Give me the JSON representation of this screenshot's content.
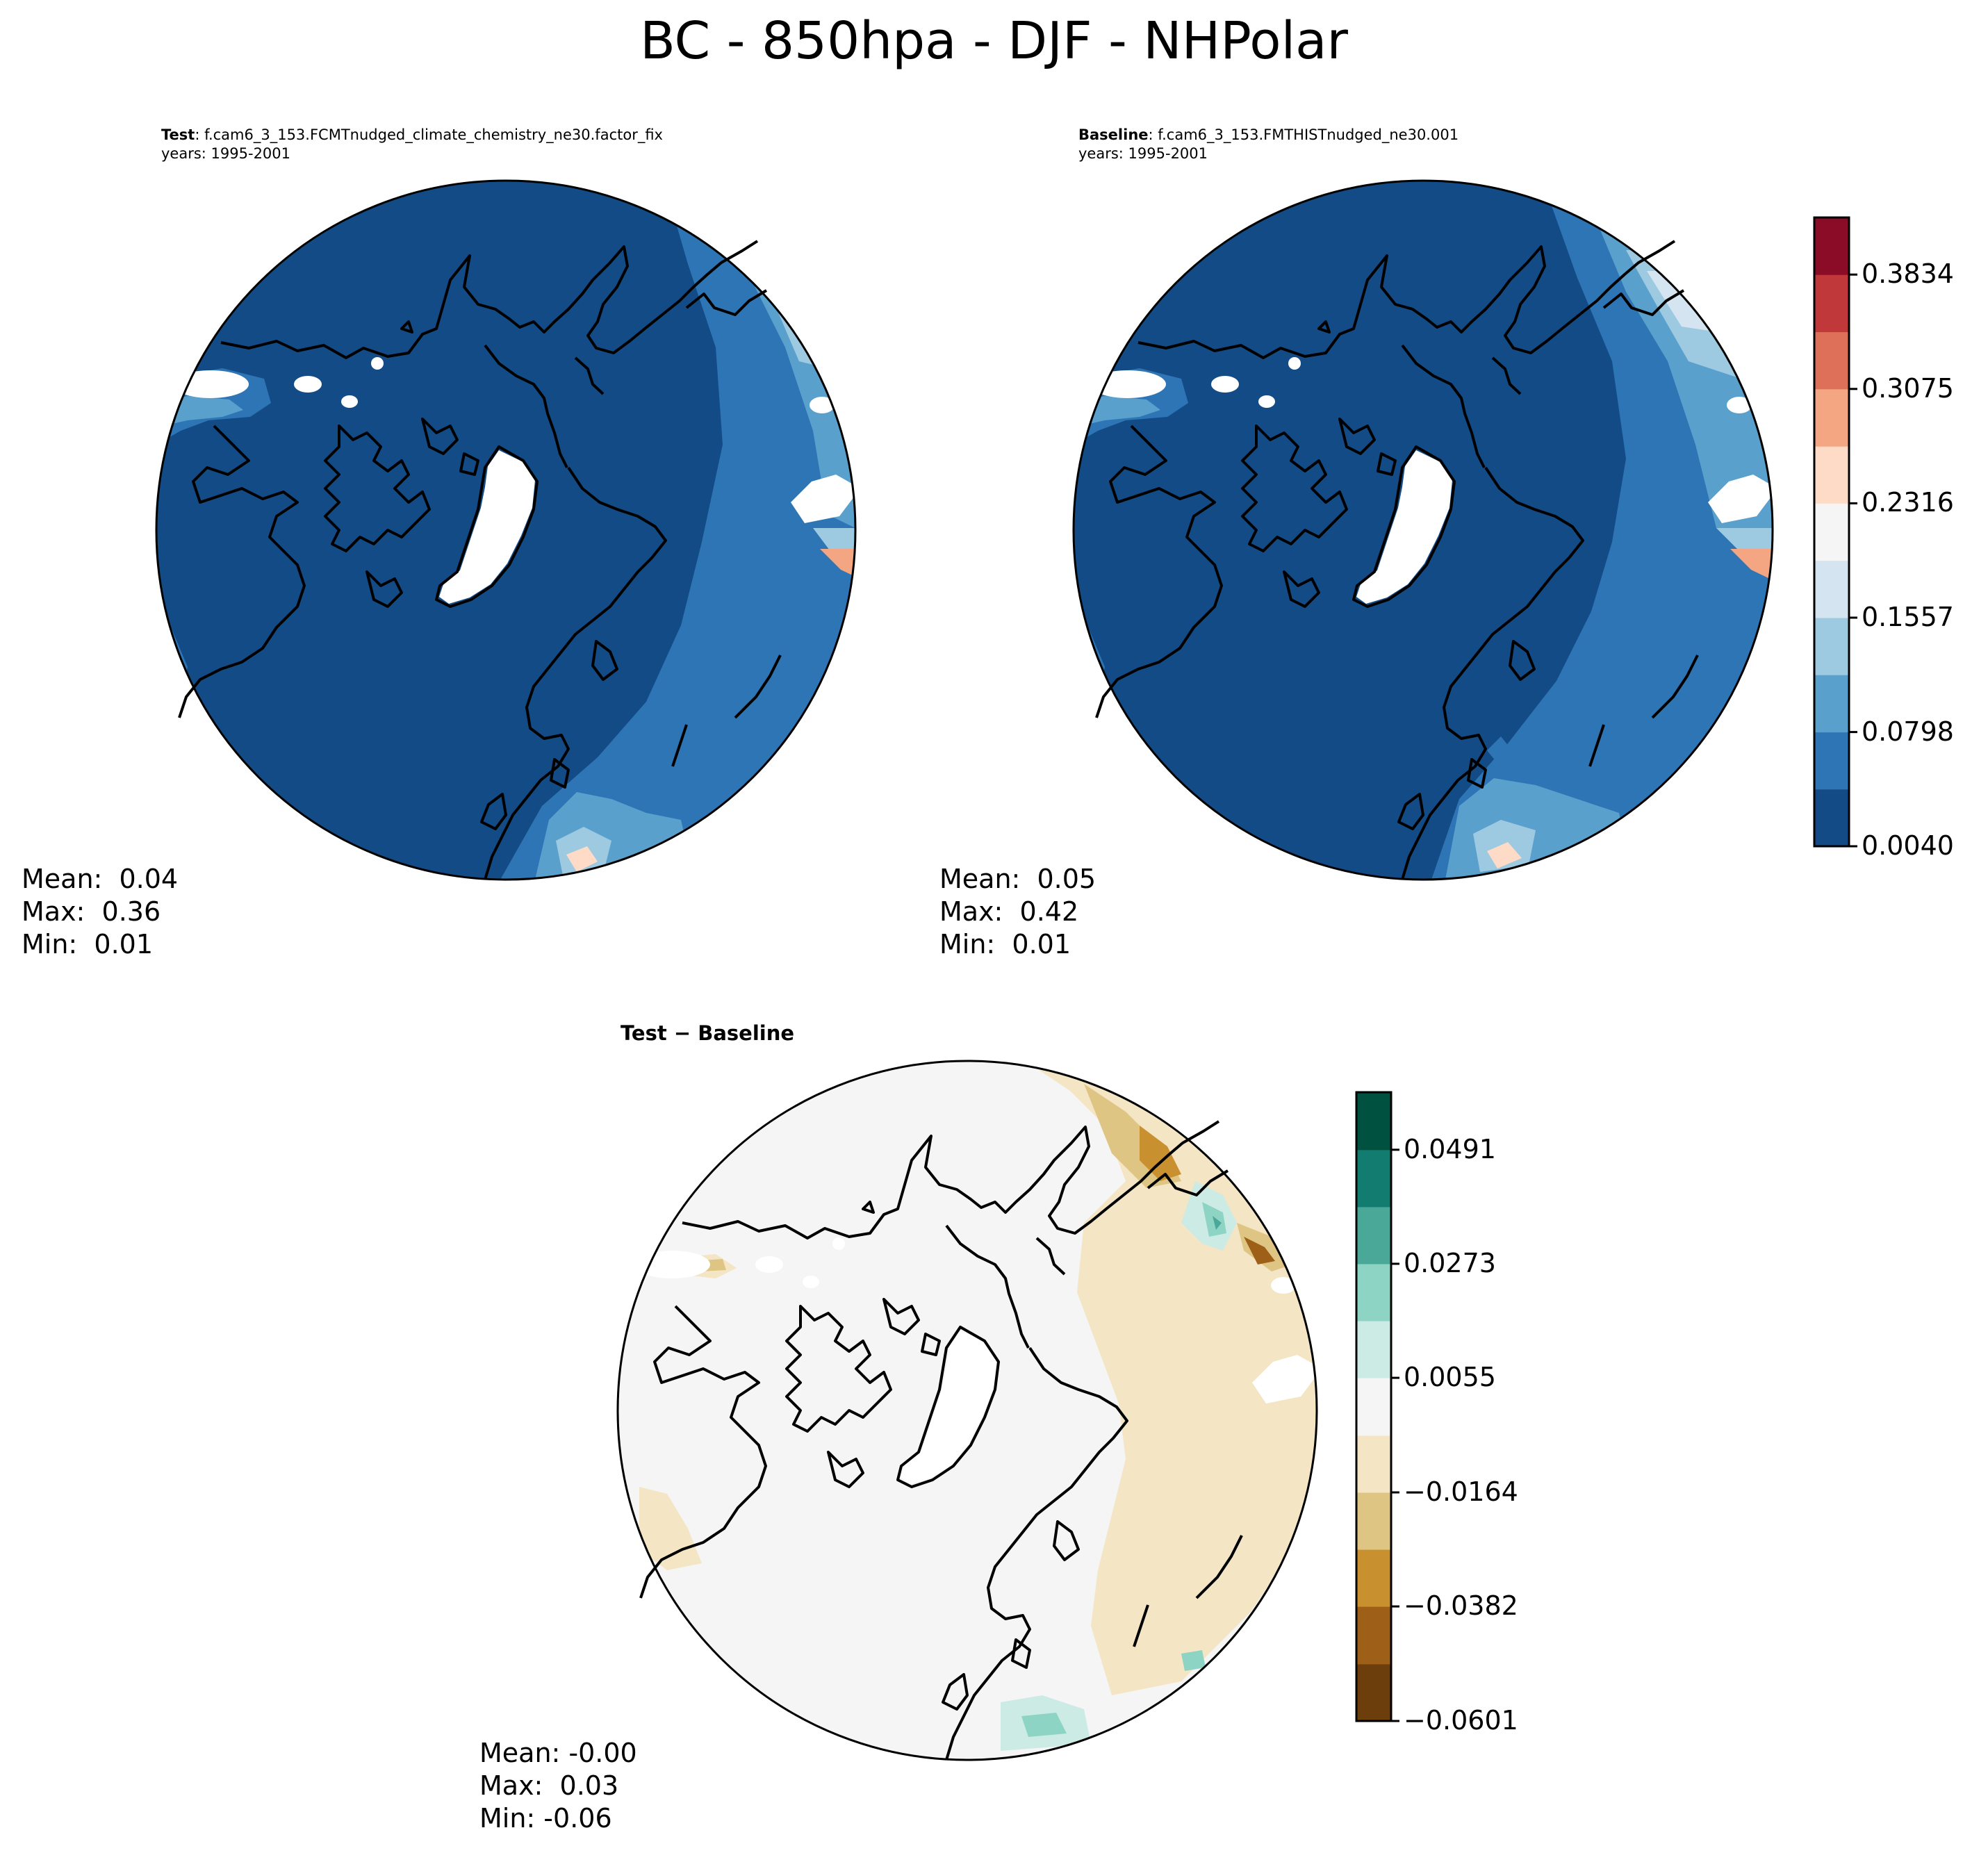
{
  "figure": {
    "title": "BC - 850hpa - DJF - NHPolar"
  },
  "panels": {
    "test": {
      "label": "Test",
      "case": ": f.cam6_3_153.FCMTnudged_climate_chemistry_ne30.factor_fix",
      "years": "years: 1995-2001",
      "stats": {
        "mean": "Mean:  0.04",
        "max": "Max:  0.36",
        "min": "Min:  0.01"
      }
    },
    "baseline": {
      "label": "Baseline",
      "case": ": f.cam6_3_153.FMTHISTnudged_ne30.001",
      "years": "years: 1995-2001",
      "stats": {
        "mean": "Mean:  0.05",
        "max": "Max:  0.42",
        "min": "Min:  0.01"
      }
    },
    "diff": {
      "title": "Test − Baseline",
      "stats": {
        "mean": "Mean: -0.00",
        "max": "Max:  0.03",
        "min": "Min: -0.06"
      }
    }
  },
  "colorbars": {
    "main": {
      "colors": [
        "#134b86",
        "#2e75b6",
        "#5aa0cd",
        "#9ecae1",
        "#d4e5f1",
        "#f5f5f5",
        "#fddbc7",
        "#f4a582",
        "#de7059",
        "#c0383a",
        "#8a0c26"
      ],
      "levels": [
        0.004,
        0.0419,
        0.0798,
        0.1178,
        0.1557,
        0.1937,
        0.2316,
        0.2695,
        0.3075,
        0.3454,
        0.3834,
        0.4213
      ],
      "tick_labels": [
        "0.0040",
        "0.0798",
        "0.1557",
        "0.2316",
        "0.3075",
        "0.3834"
      ]
    },
    "diff": {
      "colors": [
        "#6b3e0c",
        "#9e5f18",
        "#c8902f",
        "#dfc583",
        "#f4e5c4",
        "#f4f5f4",
        "#cdebe5",
        "#8dd4c5",
        "#4aa899",
        "#137c70",
        "#00513f"
      ],
      "levels": [
        -0.0601,
        -0.0492,
        -0.0382,
        -0.0273,
        -0.0164,
        -0.0055,
        0.0055,
        0.0164,
        0.0273,
        0.0382,
        0.0491,
        0.0601
      ],
      "tick_labels": [
        "−0.0601",
        "−0.0382",
        "−0.0164",
        "0.0055",
        "0.0273",
        "0.0491"
      ]
    }
  }
}
